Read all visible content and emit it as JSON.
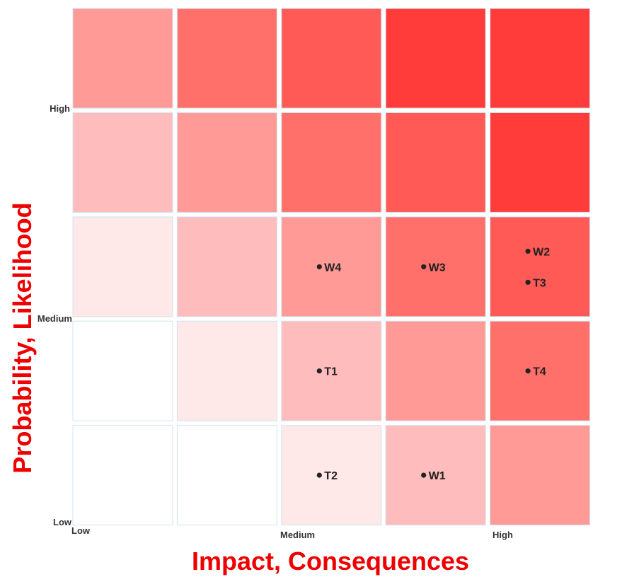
{
  "chart_data": {
    "type": "heatmap",
    "title": "",
    "xlabel": "Impact, Consequences",
    "ylabel": "Probability, Likelihood",
    "x_tick_labels": [
      "Low",
      "Medium",
      "High"
    ],
    "y_tick_labels": [
      "Low",
      "Medium",
      "High"
    ],
    "columns": 5,
    "rows": 5,
    "cell_levels": [
      [
        0,
        0,
        1,
        2,
        3
      ],
      [
        0,
        1,
        2,
        3,
        4
      ],
      [
        1,
        2,
        3,
        4,
        5
      ],
      [
        2,
        3,
        4,
        5,
        6
      ],
      [
        3,
        4,
        5,
        6,
        6
      ]
    ],
    "level_colors": [
      "#ffffff",
      "#ffe8e8",
      "#ffbcbc",
      "#ff9a97",
      "#ff706b",
      "#ff5a56",
      "#ff3c3a"
    ],
    "points": [
      {
        "label": "W4",
        "col": 3,
        "row": 3
      },
      {
        "label": "W3",
        "col": 4,
        "row": 3
      },
      {
        "label": "W2",
        "col": 5,
        "row": 3
      },
      {
        "label": "T3",
        "col": 5,
        "row": 3
      },
      {
        "label": "T1",
        "col": 3,
        "row": 2
      },
      {
        "label": "T4",
        "col": 5,
        "row": 2
      },
      {
        "label": "T2",
        "col": 3,
        "row": 1
      },
      {
        "label": "W1",
        "col": 4,
        "row": 1
      }
    ],
    "grid": false,
    "legend": "none"
  },
  "colors": {
    "axis_title": "#ee0000",
    "cell_border": "#cfe3f0",
    "point": "#222222"
  }
}
